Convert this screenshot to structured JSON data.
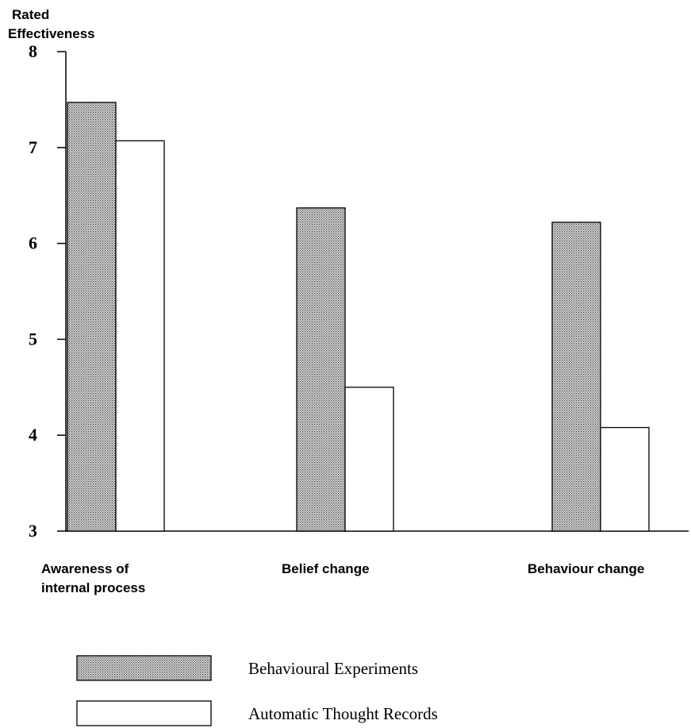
{
  "chart_data": {
    "type": "bar",
    "ylabel_lines": [
      "Rated",
      "Effectiveness"
    ],
    "xlabel": "",
    "ylim": [
      3,
      8
    ],
    "yticks": [
      3,
      4,
      5,
      6,
      7,
      8
    ],
    "grid": false,
    "legend_position": "bottom-left",
    "categories": [
      [
        "Awareness of",
        "internal process"
      ],
      [
        "Belief change"
      ],
      [
        "Behaviour change"
      ]
    ],
    "series": [
      {
        "name": "Behavioural Experiments",
        "values": [
          7.47,
          6.37,
          6.22
        ],
        "fill": "dotted-grey"
      },
      {
        "name": "Automatic Thought Records",
        "values": [
          7.07,
          4.5,
          4.08
        ],
        "fill": "#ffffff"
      }
    ]
  }
}
